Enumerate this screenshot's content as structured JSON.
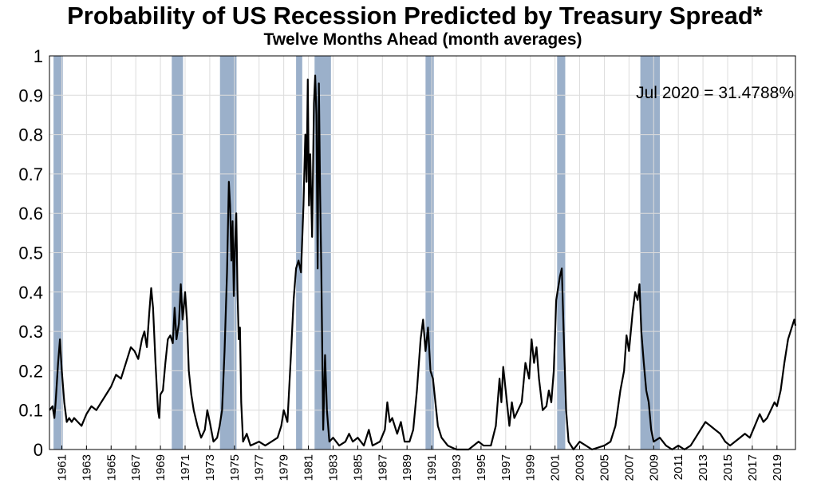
{
  "chart_data": {
    "type": "line",
    "title": "Probability of US Recession Predicted by Treasury Spread*",
    "subtitle": "Twelve Months Ahead (month averages)",
    "annotation": "Jul 2020 = 31.4788%",
    "xlim": [
      1960,
      2020.5
    ],
    "xticks": [
      1961,
      1963,
      1965,
      1967,
      1969,
      1971,
      1973,
      1975,
      1977,
      1979,
      1981,
      1983,
      1985,
      1987,
      1989,
      1991,
      1993,
      1995,
      1997,
      1999,
      2001,
      2003,
      2005,
      2007,
      2009,
      2011,
      2013,
      2015,
      2017,
      2019
    ],
    "ylim": [
      0,
      1
    ],
    "yticks": [
      0,
      0.1,
      0.2,
      0.3,
      0.4,
      0.5,
      0.6,
      0.7,
      0.8,
      0.9,
      1
    ],
    "grid": true,
    "shade_color": "#9bb0ca",
    "shaded_periods": [
      [
        1960.33,
        1961.08
      ],
      [
        1969.92,
        1970.83
      ],
      [
        1973.83,
        1975.17
      ],
      [
        1980.0,
        1980.5
      ],
      [
        1981.5,
        1982.83
      ],
      [
        1990.5,
        1991.17
      ],
      [
        2001.17,
        2001.83
      ],
      [
        2007.92,
        2009.5
      ]
    ],
    "series": [
      {
        "color": "#000000",
        "x": [
          1960.0,
          1960.25,
          1960.4,
          1960.5,
          1960.7,
          1960.85,
          1961.0,
          1961.2,
          1961.4,
          1961.6,
          1961.8,
          1962.0,
          1962.3,
          1962.6,
          1963.0,
          1963.4,
          1963.8,
          1964.2,
          1964.6,
          1965.0,
          1965.4,
          1965.8,
          1966.2,
          1966.6,
          1966.9,
          1967.2,
          1967.5,
          1967.7,
          1967.9,
          1968.1,
          1968.25,
          1968.4,
          1968.6,
          1968.8,
          1968.9,
          1969.0,
          1969.2,
          1969.4,
          1969.6,
          1969.8,
          1970.0,
          1970.15,
          1970.3,
          1970.5,
          1970.65,
          1970.8,
          1971.0,
          1971.15,
          1971.3,
          1971.5,
          1971.7,
          1972.0,
          1972.3,
          1972.6,
          1972.8,
          1973.0,
          1973.3,
          1973.6,
          1973.8,
          1974.0,
          1974.2,
          1974.4,
          1974.55,
          1974.65,
          1974.75,
          1974.85,
          1974.95,
          1975.05,
          1975.15,
          1975.25,
          1975.35,
          1975.45,
          1975.55,
          1975.7,
          1976.0,
          1976.3,
          1977.0,
          1977.5,
          1978.0,
          1978.5,
          1978.8,
          1979.0,
          1979.3,
          1979.6,
          1979.8,
          1980.0,
          1980.2,
          1980.4,
          1980.6,
          1980.75,
          1980.85,
          1980.95,
          1981.05,
          1981.15,
          1981.3,
          1981.45,
          1981.55,
          1981.65,
          1981.75,
          1981.85,
          1981.95,
          1982.05,
          1982.2,
          1982.35,
          1982.5,
          1982.7,
          1983.0,
          1983.5,
          1984.0,
          1984.3,
          1984.6,
          1985.0,
          1985.5,
          1985.9,
          1986.2,
          1986.8,
          1987.2,
          1987.4,
          1987.6,
          1987.8,
          1988.0,
          1988.2,
          1988.5,
          1988.8,
          1989.2,
          1989.5,
          1989.8,
          1990.1,
          1990.3,
          1990.5,
          1990.7,
          1990.9,
          1991.1,
          1991.3,
          1991.5,
          1991.8,
          1992.3,
          1993.0,
          1994.0,
          1994.8,
          1995.2,
          1995.8,
          1996.2,
          1996.5,
          1996.65,
          1996.8,
          1997.0,
          1997.3,
          1997.5,
          1997.7,
          1998.0,
          1998.3,
          1998.6,
          1998.9,
          1999.1,
          1999.3,
          1999.5,
          1999.7,
          2000.0,
          2000.3,
          2000.5,
          2000.7,
          2000.9,
          2001.1,
          2001.4,
          2001.55,
          2001.7,
          2001.9,
          2002.1,
          2002.5,
          2003.0,
          2003.5,
          2004.0,
          2005.0,
          2005.5,
          2005.9,
          2006.3,
          2006.6,
          2006.8,
          2007.0,
          2007.3,
          2007.5,
          2007.7,
          2007.85,
          2008.0,
          2008.2,
          2008.4,
          2008.6,
          2008.8,
          2009.0,
          2009.5,
          2010.0,
          2010.5,
          2011.0,
          2011.5,
          2012.0,
          2012.4,
          2012.8,
          2013.2,
          2013.6,
          2014.0,
          2014.4,
          2014.8,
          2015.2,
          2015.6,
          2016.0,
          2016.4,
          2016.8,
          2017.2,
          2017.6,
          2017.9,
          2018.2,
          2018.5,
          2018.8,
          2019.0,
          2019.3,
          2019.6,
          2019.9,
          2020.2,
          2020.4,
          2020.5
        ],
        "values": [
          0.1,
          0.11,
          0.08,
          0.12,
          0.22,
          0.28,
          0.2,
          0.12,
          0.07,
          0.08,
          0.07,
          0.08,
          0.07,
          0.06,
          0.09,
          0.11,
          0.1,
          0.12,
          0.14,
          0.16,
          0.19,
          0.18,
          0.22,
          0.26,
          0.25,
          0.23,
          0.28,
          0.3,
          0.26,
          0.35,
          0.41,
          0.36,
          0.22,
          0.1,
          0.08,
          0.14,
          0.15,
          0.22,
          0.28,
          0.29,
          0.27,
          0.36,
          0.28,
          0.32,
          0.42,
          0.33,
          0.4,
          0.33,
          0.2,
          0.14,
          0.1,
          0.06,
          0.03,
          0.05,
          0.1,
          0.07,
          0.02,
          0.03,
          0.06,
          0.1,
          0.25,
          0.45,
          0.68,
          0.62,
          0.48,
          0.58,
          0.39,
          0.52,
          0.6,
          0.4,
          0.28,
          0.31,
          0.12,
          0.02,
          0.04,
          0.01,
          0.02,
          0.01,
          0.02,
          0.03,
          0.06,
          0.1,
          0.07,
          0.25,
          0.38,
          0.46,
          0.48,
          0.45,
          0.62,
          0.8,
          0.68,
          0.94,
          0.62,
          0.75,
          0.54,
          0.88,
          0.95,
          0.85,
          0.46,
          0.93,
          0.65,
          0.45,
          0.05,
          0.24,
          0.1,
          0.02,
          0.03,
          0.01,
          0.02,
          0.04,
          0.02,
          0.03,
          0.01,
          0.05,
          0.01,
          0.02,
          0.05,
          0.12,
          0.07,
          0.08,
          0.06,
          0.04,
          0.07,
          0.02,
          0.02,
          0.05,
          0.15,
          0.28,
          0.33,
          0.25,
          0.31,
          0.2,
          0.18,
          0.12,
          0.06,
          0.03,
          0.01,
          0.0,
          0.0,
          0.02,
          0.01,
          0.01,
          0.06,
          0.18,
          0.12,
          0.21,
          0.15,
          0.06,
          0.12,
          0.08,
          0.1,
          0.12,
          0.22,
          0.18,
          0.28,
          0.22,
          0.26,
          0.18,
          0.1,
          0.11,
          0.15,
          0.12,
          0.2,
          0.38,
          0.44,
          0.46,
          0.3,
          0.1,
          0.02,
          0.0,
          0.02,
          0.01,
          0.0,
          0.01,
          0.02,
          0.06,
          0.15,
          0.2,
          0.29,
          0.25,
          0.35,
          0.4,
          0.38,
          0.42,
          0.3,
          0.22,
          0.15,
          0.12,
          0.05,
          0.02,
          0.03,
          0.01,
          0.0,
          0.01,
          0.0,
          0.01,
          0.03,
          0.05,
          0.07,
          0.06,
          0.05,
          0.04,
          0.02,
          0.01,
          0.02,
          0.03,
          0.04,
          0.03,
          0.06,
          0.09,
          0.07,
          0.08,
          0.1,
          0.12,
          0.11,
          0.15,
          0.22,
          0.28,
          0.31,
          0.33,
          0.314788
        ]
      }
    ]
  }
}
